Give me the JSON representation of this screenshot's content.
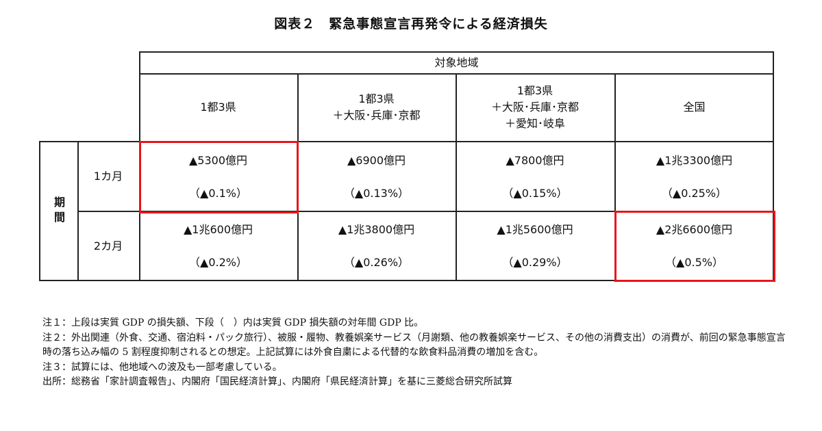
{
  "title": "図表２　緊急事態宣言再発令による経済損失",
  "table": {
    "column_group": "対象地域",
    "row_group": "期間",
    "columns": [
      [
        "1都3県"
      ],
      [
        "1都3県",
        "＋大阪･兵庫･京都"
      ],
      [
        "1都3県",
        "＋大阪･兵庫･京都",
        "＋愛知･岐阜"
      ],
      [
        "全国"
      ]
    ],
    "rows": [
      {
        "label": "1カ月",
        "cells": [
          {
            "amount": "▲5300億円",
            "ratio": "（▲0.1%）",
            "highlighted": true
          },
          {
            "amount": "▲6900億円",
            "ratio": "（▲0.13%）",
            "highlighted": false
          },
          {
            "amount": "▲7800億円",
            "ratio": "（▲0.15%）",
            "highlighted": false
          },
          {
            "amount": "▲1兆3300億円",
            "ratio": "（▲0.25%）",
            "highlighted": false
          }
        ]
      },
      {
        "label": "2カ月",
        "cells": [
          {
            "amount": "▲1兆600億円",
            "ratio": "（▲0.2%）",
            "highlighted": false
          },
          {
            "amount": "▲1兆3800億円",
            "ratio": "（▲0.26%）",
            "highlighted": false
          },
          {
            "amount": "▲1兆5600億円",
            "ratio": "（▲0.29%）",
            "highlighted": false
          },
          {
            "amount": "▲2兆6600億円",
            "ratio": "（▲0.5%）",
            "highlighted": true
          }
        ]
      }
    ],
    "highlight_color": "#e8141a"
  },
  "notes": [
    "注１：上段は実質 GDP の損失額、下段（　）内は実質 GDP 損失額の対年間 GDP 比。",
    "注２：外出関連（外食、交通、宿泊料・パック旅行）、被服・履物、教養娯楽サービス（月謝類、他の教養娯楽サービス、その他の消費支出）の消費が、前回の緊急事態宣言時の落ち込み幅の 5 割程度抑制されるとの想定。上記試算には外食自粛による代替的な飲食料品消費の増加を含む。",
    "注３：試算には、他地域への波及も一部考慮している。",
    "出所：総務省「家計調査報告」、内閣府「国民経済計算」、内閣府「県民経済計算」を基に三菱総合研究所試算"
  ]
}
